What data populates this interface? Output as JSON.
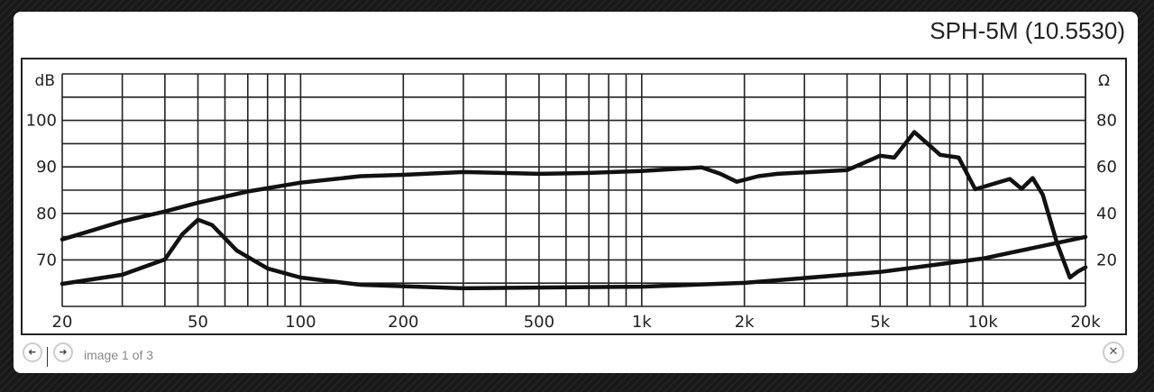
{
  "lightbox": {
    "title": "SPH-5M (10.5530)",
    "counter": "image 1 of 3",
    "prev_icon": "arrow-left-icon",
    "next_icon": "arrow-right-icon",
    "close_icon": "close-icon",
    "prev_glyph": "➜",
    "next_glyph": "➜",
    "close_glyph": "✕"
  },
  "chart_data": {
    "type": "line",
    "xscale": "log",
    "xlim": [
      20,
      20000
    ],
    "ylim": [
      60,
      110
    ],
    "y2lim": [
      0,
      100
    ],
    "grid": true,
    "ylabel": "dB",
    "y2label": "Ω",
    "x_ticks": [
      {
        "v": 20,
        "label": "20"
      },
      {
        "v": 50,
        "label": "50"
      },
      {
        "v": 100,
        "label": "100"
      },
      {
        "v": 200,
        "label": "200"
      },
      {
        "v": 500,
        "label": "500"
      },
      {
        "v": 1000,
        "label": "1k"
      },
      {
        "v": 2000,
        "label": "2k"
      },
      {
        "v": 5000,
        "label": "5k"
      },
      {
        "v": 10000,
        "label": "10k"
      },
      {
        "v": 20000,
        "label": "20k"
      }
    ],
    "y_ticks": [
      {
        "v": 70,
        "label": "70"
      },
      {
        "v": 80,
        "label": "80"
      },
      {
        "v": 90,
        "label": "90"
      },
      {
        "v": 100,
        "label": "100"
      }
    ],
    "y2_ticks": [
      {
        "v": 20,
        "label": "20"
      },
      {
        "v": 40,
        "label": "40"
      },
      {
        "v": 60,
        "label": "60"
      },
      {
        "v": 80,
        "label": "80"
      }
    ],
    "series": [
      {
        "axis": "dB",
        "color": "#111111",
        "x": [
          20,
          30,
          40,
          50,
          70,
          100,
          150,
          200,
          300,
          500,
          700,
          1000,
          1500,
          1700,
          1900,
          2200,
          2500,
          4000,
          5000,
          5500,
          6300,
          7500,
          8500,
          9500,
          12000,
          13000,
          14000,
          15000,
          16500,
          18000,
          19000,
          20000
        ],
        "y": [
          74.4,
          78.3,
          80.4,
          82.3,
          84.7,
          86.6,
          88.0,
          88.3,
          88.9,
          88.5,
          88.7,
          89.1,
          89.9,
          88.5,
          86.8,
          88.0,
          88.5,
          89.3,
          92.4,
          92.0,
          97.5,
          92.6,
          92.0,
          85.2,
          87.4,
          85.3,
          87.6,
          84.0,
          73.6,
          66.2,
          67.5,
          68.4
        ]
      },
      {
        "axis": "Ω",
        "color": "#111111",
        "x": [
          20,
          30,
          40,
          45,
          50,
          55,
          65,
          80,
          100,
          150,
          300,
          1000,
          2000,
          5000,
          10000,
          20000
        ],
        "y": [
          9.7,
          13.6,
          20.2,
          31,
          37.3,
          35,
          24,
          16.3,
          12.4,
          9.3,
          7.8,
          8.5,
          10.1,
          14.8,
          20.6,
          29.9
        ]
      }
    ]
  }
}
